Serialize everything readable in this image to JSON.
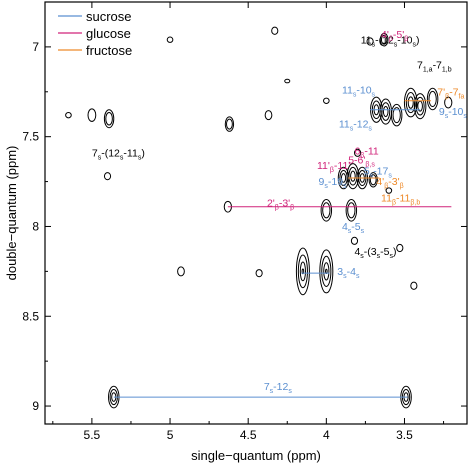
{
  "chart_data": {
    "type": "contour",
    "xlabel": "single−quantum (ppm)",
    "ylabel": "double−quantum (ppm)",
    "xlim": [
      5.8,
      3.1
    ],
    "ylim": [
      9.1,
      6.75
    ],
    "x_ticks": [
      {
        "value": 5.5,
        "label": "5.5"
      },
      {
        "value": 5.0,
        "label": "5"
      },
      {
        "value": 4.5,
        "label": "4.5"
      },
      {
        "value": 4.0,
        "label": "4"
      },
      {
        "value": 3.5,
        "label": "3.5"
      }
    ],
    "y_ticks": [
      {
        "value": 7.0,
        "label": "7"
      },
      {
        "value": 7.5,
        "label": "7.5"
      },
      {
        "value": 8.0,
        "label": "8"
      },
      {
        "value": 8.5,
        "label": "8.5"
      },
      {
        "value": 9.0,
        "label": "9"
      }
    ],
    "grid": false,
    "legend_position": "top-left",
    "legend": [
      {
        "label": "sucrose",
        "color": "#5b8fd0"
      },
      {
        "label": "glucose",
        "color": "#d0237a"
      },
      {
        "label": "fructose",
        "color": "#ee8a2a"
      }
    ],
    "correlation_lines": [
      {
        "series": "sucrose",
        "y": 8.95,
        "x_from": 5.36,
        "x_to": 3.48
      },
      {
        "series": "glucose",
        "y": 7.89,
        "x_from": 4.63,
        "x_to": 3.2
      },
      {
        "series": "sucrose",
        "y": 8.26,
        "x_from": 4.16,
        "x_to": 3.98
      },
      {
        "series": "sucrose",
        "y": 7.35,
        "x_from": 3.72,
        "x_to": 3.4
      },
      {
        "series": "fructose",
        "y": 7.73,
        "x_from": 3.86,
        "x_to": 3.66
      },
      {
        "series": "fructose",
        "y": 7.3,
        "x_from": 3.5,
        "x_to": 3.33
      }
    ],
    "peaks": [
      {
        "x": 5.36,
        "y": 8.95,
        "ry": 0.06,
        "n": 3
      },
      {
        "x": 3.49,
        "y": 8.95,
        "ry": 0.06,
        "n": 3
      },
      {
        "x": 4.15,
        "y": 8.25,
        "ry": 0.13,
        "n": 4
      },
      {
        "x": 4.0,
        "y": 8.25,
        "ry": 0.12,
        "n": 4
      },
      {
        "x": 4.0,
        "y": 7.91,
        "ry": 0.06,
        "n": 2
      },
      {
        "x": 3.84,
        "y": 7.91,
        "ry": 0.06,
        "n": 2
      },
      {
        "x": 4.63,
        "y": 7.89,
        "ry": 0.03,
        "n": 1
      },
      {
        "x": 3.89,
        "y": 7.73,
        "ry": 0.06,
        "n": 3
      },
      {
        "x": 3.83,
        "y": 7.72,
        "ry": 0.07,
        "n": 3
      },
      {
        "x": 3.77,
        "y": 7.73,
        "ry": 0.06,
        "n": 3
      },
      {
        "x": 3.7,
        "y": 7.74,
        "ry": 0.04,
        "n": 2
      },
      {
        "x": 3.68,
        "y": 7.35,
        "ry": 0.07,
        "n": 3
      },
      {
        "x": 3.62,
        "y": 7.36,
        "ry": 0.07,
        "n": 3
      },
      {
        "x": 3.55,
        "y": 7.38,
        "ry": 0.06,
        "n": 2
      },
      {
        "x": 3.46,
        "y": 7.31,
        "ry": 0.08,
        "n": 3
      },
      {
        "x": 3.4,
        "y": 7.33,
        "ry": 0.07,
        "n": 3
      },
      {
        "x": 3.32,
        "y": 7.29,
        "ry": 0.06,
        "n": 2
      },
      {
        "x": 3.22,
        "y": 7.31,
        "ry": 0.03,
        "n": 1
      },
      {
        "x": 3.82,
        "y": 8.08,
        "ry": 0.02,
        "n": 1
      },
      {
        "x": 3.53,
        "y": 8.12,
        "ry": 0.02,
        "n": 1
      },
      {
        "x": 3.44,
        "y": 8.33,
        "ry": 0.02,
        "n": 1
      },
      {
        "x": 4.43,
        "y": 8.26,
        "ry": 0.02,
        "n": 1
      },
      {
        "x": 4.37,
        "y": 7.38,
        "ry": 0.025,
        "n": 1
      },
      {
        "x": 4.62,
        "y": 7.43,
        "ry": 0.04,
        "n": 2
      },
      {
        "x": 5.39,
        "y": 7.4,
        "ry": 0.05,
        "n": 2
      },
      {
        "x": 5.5,
        "y": 7.38,
        "ry": 0.035,
        "n": 1
      },
      {
        "x": 5.65,
        "y": 7.38,
        "ry": 0.015,
        "n": 1
      },
      {
        "x": 5.0,
        "y": 6.96,
        "ry": 0.015,
        "n": 1
      },
      {
        "x": 4.33,
        "y": 6.91,
        "ry": 0.02,
        "n": 1
      },
      {
        "x": 3.72,
        "y": 6.97,
        "ry": 0.02,
        "n": 1
      },
      {
        "x": 3.63,
        "y": 6.96,
        "ry": 0.035,
        "n": 2
      },
      {
        "x": 5.4,
        "y": 7.72,
        "ry": 0.02,
        "n": 1
      },
      {
        "x": 4.93,
        "y": 8.25,
        "ry": 0.025,
        "n": 1
      },
      {
        "x": 3.8,
        "y": 7.59,
        "ry": 0.02,
        "n": 1
      },
      {
        "x": 4.0,
        "y": 7.3,
        "ry": 0.015,
        "n": 1
      },
      {
        "x": 4.25,
        "y": 7.19,
        "ry": 0.01,
        "n": 1
      },
      {
        "x": 3.6,
        "y": 7.8,
        "ry": 0.015,
        "n": 1
      }
    ],
    "annotations": [
      {
        "series": "none",
        "x": 3.78,
        "y": 6.98,
        "base": "11",
        "sub": "s",
        "rest": "-(12",
        "sub2": "s",
        "rest2": "-10",
        "sub3": "s",
        "end": ")"
      },
      {
        "series": "glucose",
        "x": 3.65,
        "y": 6.95,
        "base": "4'",
        "sub": "β",
        "rest": "-5'",
        "sub2": "β",
        "rest2": "",
        "sub3": "",
        "end": ""
      },
      {
        "series": "none",
        "x": 3.42,
        "y": 7.12,
        "base": "7",
        "sub": "1,a",
        "rest": "-7",
        "sub2": "1,b",
        "rest2": "",
        "sub3": "",
        "end": ""
      },
      {
        "series": "none",
        "x": 5.5,
        "y": 7.61,
        "base": "7",
        "sub": "s",
        "rest": "-(12",
        "sub2": "s",
        "rest2": "-11",
        "sub3": "s",
        "end": ")"
      },
      {
        "series": "sucrose",
        "x": 3.9,
        "y": 7.26,
        "base": "11",
        "sub": "s",
        "rest": "-10",
        "sub2": "s",
        "rest2": "",
        "sub3": "",
        "end": ""
      },
      {
        "series": "sucrose",
        "x": 3.92,
        "y": 7.45,
        "base": "11",
        "sub": "s",
        "rest": "-12",
        "sub2": "s",
        "rest2": "",
        "sub3": "",
        "end": ""
      },
      {
        "series": "fructose",
        "x": 3.29,
        "y": 7.27,
        "base": "7'",
        "sub": "β",
        "rest": "-7",
        "sub2": "fa",
        "rest2": "",
        "sub3": "",
        "end": ""
      },
      {
        "series": "sucrose",
        "x": 3.28,
        "y": 7.38,
        "base": "9",
        "sub": "s",
        "rest": "-10",
        "sub2": "s",
        "rest2": "",
        "sub3": "",
        "end": ""
      },
      {
        "series": "glucose",
        "x": 3.82,
        "y": 7.6,
        "base": "6",
        "sub": "β",
        "rest": "-11",
        "sub2": "",
        "rest2": "",
        "sub3": "",
        "end": ""
      },
      {
        "series": "glucose",
        "x": 3.86,
        "y": 7.65,
        "base": "5",
        "sub": "",
        "rest": "-6'",
        "sub2": "β,s",
        "rest2": "",
        "sub3": "",
        "end": ""
      },
      {
        "series": "glucose",
        "x": 4.06,
        "y": 7.68,
        "base": "11'",
        "sub": "β",
        "rest": "-11'",
        "sub2": "",
        "rest2": "",
        "sub3": "",
        "end": ""
      },
      {
        "series": "sucrose",
        "x": 3.76,
        "y": 7.71,
        "base": "5",
        "sub": "s",
        "rest": "-17",
        "sub2": "s",
        "rest2": "",
        "sub3": "",
        "end": ""
      },
      {
        "series": "sucrose",
        "x": 4.05,
        "y": 7.77,
        "base": "9",
        "sub": "s",
        "rest": "-19",
        "sub2": "s",
        "rest2": "",
        "sub3": "",
        "end": ""
      },
      {
        "series": "fructose",
        "x": 3.68,
        "y": 7.77,
        "base": "4'",
        "sub": "β",
        "rest": "-3'",
        "sub2": "β",
        "rest2": "",
        "sub3": "",
        "end": ""
      },
      {
        "series": "fructose",
        "x": 3.65,
        "y": 7.86,
        "base": "11",
        "sub": "β",
        "rest": "-11",
        "sub2": "β,b",
        "rest2": "",
        "sub3": "",
        "end": ""
      },
      {
        "series": "glucose",
        "x": 4.38,
        "y": 7.89,
        "base": "2'",
        "sub": "β",
        "rest": "-3'",
        "sub2": "β",
        "rest2": "",
        "sub3": "",
        "end": ""
      },
      {
        "series": "sucrose",
        "x": 3.9,
        "y": 8.02,
        "base": "4",
        "sub": "s",
        "rest": "-5",
        "sub2": "s",
        "rest2": "",
        "sub3": "",
        "end": ""
      },
      {
        "series": "none",
        "x": 3.82,
        "y": 8.16,
        "base": "4",
        "sub": "s",
        "rest": "-(3",
        "sub2": "s",
        "rest2": "-5",
        "sub3": "s",
        "end": ")"
      },
      {
        "series": "sucrose",
        "x": 3.93,
        "y": 8.27,
        "base": "3",
        "sub": "s",
        "rest": "-4",
        "sub2": "s",
        "rest2": "",
        "sub3": "",
        "end": ""
      },
      {
        "series": "sucrose",
        "x": 4.4,
        "y": 8.91,
        "base": "7",
        "sub": "s",
        "rest": "-12",
        "sub2": "s",
        "rest2": "",
        "sub3": "",
        "end": ""
      }
    ]
  }
}
